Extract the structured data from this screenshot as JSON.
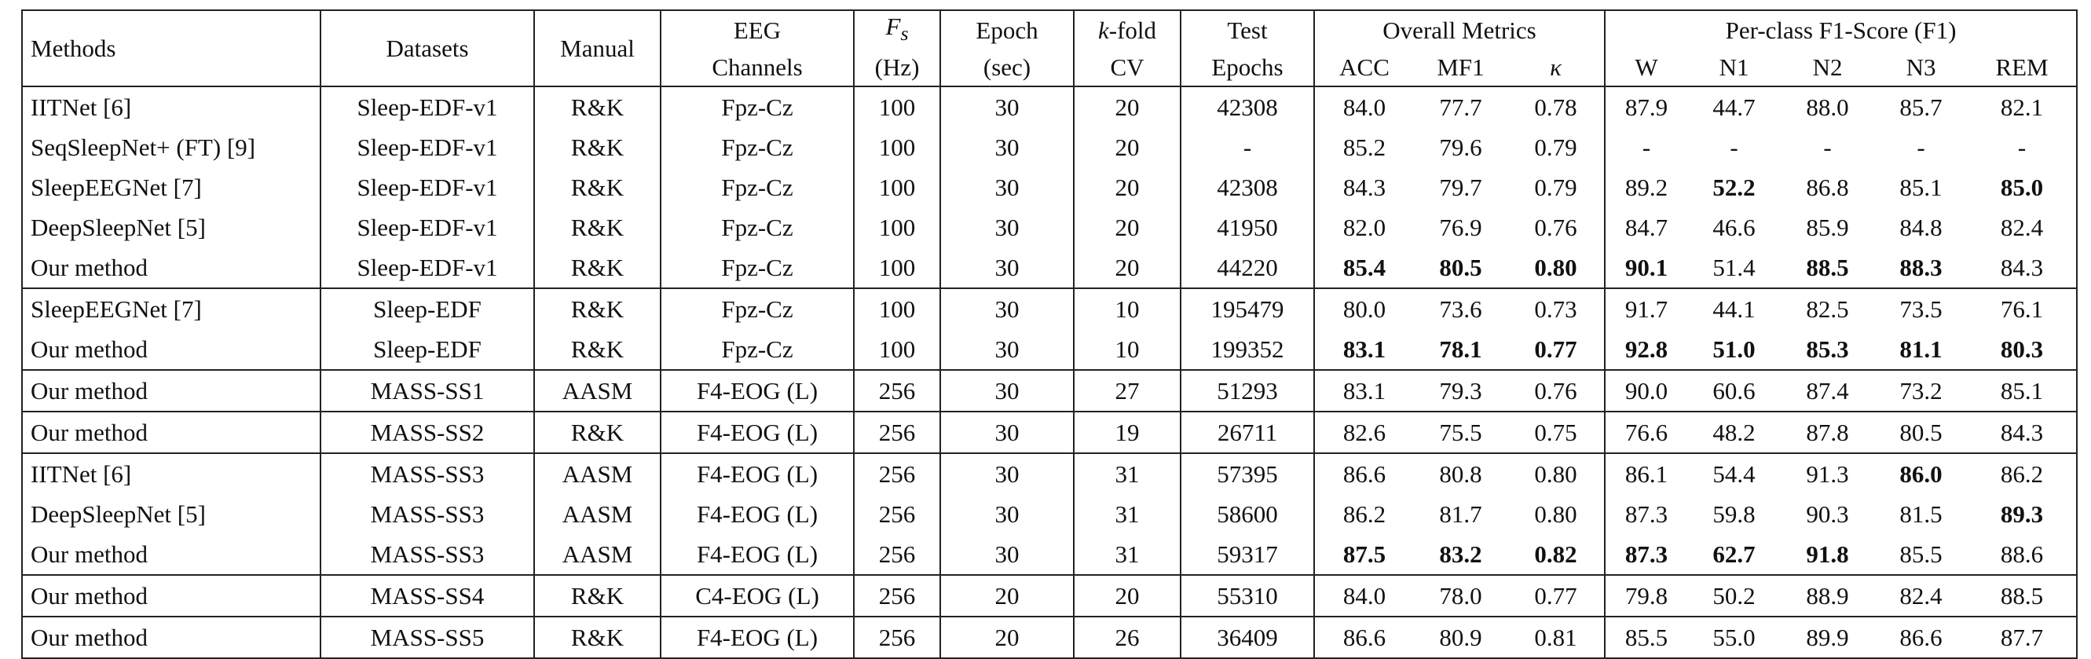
{
  "header": {
    "methods": "Methods",
    "datasets": "Datasets",
    "manual": "Manual",
    "eeg": [
      "EEG",
      "Channels"
    ],
    "fs": {
      "symbol": "F",
      "subscript": "s",
      "unit": "(Hz)"
    },
    "epoch": [
      "Epoch",
      "(sec)"
    ],
    "kfold": {
      "symbol": "k",
      "text": "-fold",
      "line2": "CV"
    },
    "test": [
      "Test",
      "Epochs"
    ],
    "overall": {
      "title": "Overall Metrics",
      "columns": [
        "ACC",
        "MF1",
        "κ"
      ]
    },
    "perclass": {
      "title": "Per-class F1-Score (F1)",
      "columns": [
        "W",
        "N1",
        "N2",
        "N3",
        "REM"
      ]
    }
  },
  "table": {
    "groups": [
      {
        "rows": [
          {
            "cells": [
              "IITNet [6]",
              "Sleep-EDF-v1",
              "R&K",
              "Fpz-Cz",
              "100",
              "30",
              "20",
              "42308",
              "84.0",
              "77.7",
              "0.78",
              "87.9",
              "44.7",
              "88.0",
              "85.7",
              "82.1"
            ],
            "bold": []
          },
          {
            "cells": [
              "SeqSleepNet+ (FT) [9]",
              "Sleep-EDF-v1",
              "R&K",
              "Fpz-Cz",
              "100",
              "30",
              "20",
              "-",
              "85.2",
              "79.6",
              "0.79",
              "-",
              "-",
              "-",
              "-",
              "-"
            ],
            "bold": []
          },
          {
            "cells": [
              "SleepEEGNet [7]",
              "Sleep-EDF-v1",
              "R&K",
              "Fpz-Cz",
              "100",
              "30",
              "20",
              "42308",
              "84.3",
              "79.7",
              "0.79",
              "89.2",
              "52.2",
              "86.8",
              "85.1",
              "85.0"
            ],
            "bold": [
              12,
              15
            ]
          },
          {
            "cells": [
              "DeepSleepNet [5]",
              "Sleep-EDF-v1",
              "R&K",
              "Fpz-Cz",
              "100",
              "30",
              "20",
              "41950",
              "82.0",
              "76.9",
              "0.76",
              "84.7",
              "46.6",
              "85.9",
              "84.8",
              "82.4"
            ],
            "bold": []
          },
          {
            "cells": [
              "Our method",
              "Sleep-EDF-v1",
              "R&K",
              "Fpz-Cz",
              "100",
              "30",
              "20",
              "44220",
              "85.4",
              "80.5",
              "0.80",
              "90.1",
              "51.4",
              "88.5",
              "88.3",
              "84.3"
            ],
            "bold": [
              8,
              9,
              10,
              11,
              13,
              14
            ]
          }
        ]
      },
      {
        "rows": [
          {
            "cells": [
              "SleepEEGNet [7]",
              "Sleep-EDF",
              "R&K",
              "Fpz-Cz",
              "100",
              "30",
              "10",
              "195479",
              "80.0",
              "73.6",
              "0.73",
              "91.7",
              "44.1",
              "82.5",
              "73.5",
              "76.1"
            ],
            "bold": []
          },
          {
            "cells": [
              "Our method",
              "Sleep-EDF",
              "R&K",
              "Fpz-Cz",
              "100",
              "30",
              "10",
              "199352",
              "83.1",
              "78.1",
              "0.77",
              "92.8",
              "51.0",
              "85.3",
              "81.1",
              "80.3"
            ],
            "bold": [
              8,
              9,
              10,
              11,
              12,
              13,
              14,
              15
            ]
          }
        ]
      },
      {
        "rows": [
          {
            "cells": [
              "Our method",
              "MASS-SS1",
              "AASM",
              "F4-EOG (L)",
              "256",
              "30",
              "27",
              "51293",
              "83.1",
              "79.3",
              "0.76",
              "90.0",
              "60.6",
              "87.4",
              "73.2",
              "85.1"
            ],
            "bold": []
          }
        ]
      },
      {
        "rows": [
          {
            "cells": [
              "Our method",
              "MASS-SS2",
              "R&K",
              "F4-EOG (L)",
              "256",
              "30",
              "19",
              "26711",
              "82.6",
              "75.5",
              "0.75",
              "76.6",
              "48.2",
              "87.8",
              "80.5",
              "84.3"
            ],
            "bold": []
          }
        ]
      },
      {
        "rows": [
          {
            "cells": [
              "IITNet [6]",
              "MASS-SS3",
              "AASM",
              "F4-EOG (L)",
              "256",
              "30",
              "31",
              "57395",
              "86.6",
              "80.8",
              "0.80",
              "86.1",
              "54.4",
              "91.3",
              "86.0",
              "86.2"
            ],
            "bold": [
              14
            ]
          },
          {
            "cells": [
              "DeepSleepNet [5]",
              "MASS-SS3",
              "AASM",
              "F4-EOG (L)",
              "256",
              "30",
              "31",
              "58600",
              "86.2",
              "81.7",
              "0.80",
              "87.3",
              "59.8",
              "90.3",
              "81.5",
              "89.3"
            ],
            "bold": [
              15
            ]
          },
          {
            "cells": [
              "Our method",
              "MASS-SS3",
              "AASM",
              "F4-EOG (L)",
              "256",
              "30",
              "31",
              "59317",
              "87.5",
              "83.2",
              "0.82",
              "87.3",
              "62.7",
              "91.8",
              "85.5",
              "88.6"
            ],
            "bold": [
              8,
              9,
              10,
              11,
              12,
              13
            ]
          }
        ]
      },
      {
        "rows": [
          {
            "cells": [
              "Our method",
              "MASS-SS4",
              "R&K",
              "C4-EOG (L)",
              "256",
              "20",
              "20",
              "55310",
              "84.0",
              "78.0",
              "0.77",
              "79.8",
              "50.2",
              "88.9",
              "82.4",
              "88.5"
            ],
            "bold": []
          }
        ]
      },
      {
        "rows": [
          {
            "cells": [
              "Our method",
              "MASS-SS5",
              "R&K",
              "F4-EOG (L)",
              "256",
              "20",
              "26",
              "36409",
              "86.6",
              "80.9",
              "0.81",
              "85.5",
              "55.0",
              "89.9",
              "86.6",
              "87.7"
            ],
            "bold": []
          }
        ]
      }
    ]
  }
}
